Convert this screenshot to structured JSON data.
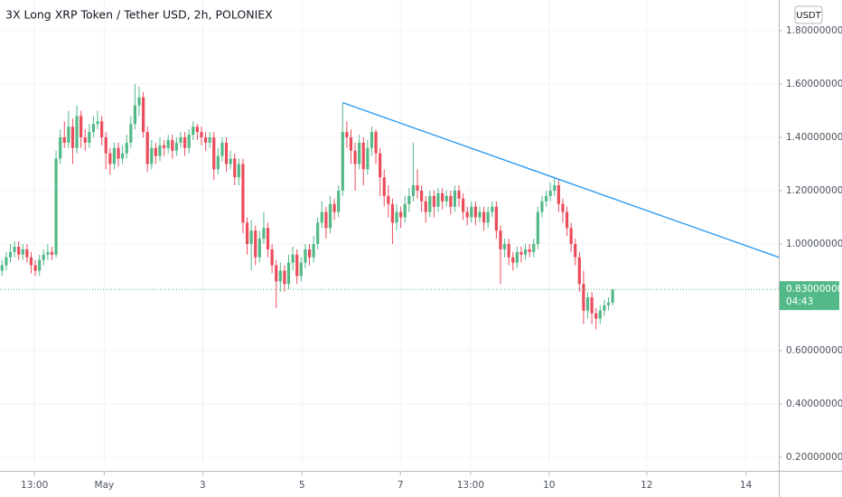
{
  "chart_data": {
    "type": "candlestick",
    "title": "3X Long XRP Token / Tether USD, 2h, POLONIEX",
    "currency_button": "USDT",
    "up_color": "#53b987",
    "down_color": "#eb4d5c",
    "grid": true,
    "xlim": [
      -0.5,
      187
    ],
    "ylim": [
      0.146,
      1.915
    ],
    "yticks": [
      {
        "value": 0.2,
        "label": "0.20000000"
      },
      {
        "value": 0.4,
        "label": "0.40000000"
      },
      {
        "value": 0.6,
        "label": "0.60000000"
      },
      {
        "value": 1.0,
        "label": "1.00000000"
      },
      {
        "value": 1.2,
        "label": "1.20000000"
      },
      {
        "value": 1.4,
        "label": "1.40000000"
      },
      {
        "value": 1.6,
        "label": "1.60000000"
      },
      {
        "value": 1.8,
        "label": "1.80000000"
      }
    ],
    "xticks": [
      {
        "value": 7.8,
        "label": "13:00"
      },
      {
        "value": 24.6,
        "label": "May"
      },
      {
        "value": 48.3,
        "label": "3"
      },
      {
        "value": 72.2,
        "label": "5"
      },
      {
        "value": 95.9,
        "label": "7"
      },
      {
        "value": 112.8,
        "label": "13:00"
      },
      {
        "value": 131.7,
        "label": "10"
      },
      {
        "value": 155.2,
        "label": "12"
      },
      {
        "value": 179.1,
        "label": "14"
      }
    ],
    "last_price": {
      "value": 0.83,
      "label": "0.83000000"
    },
    "countdown": "04:43",
    "trendline": {
      "x": [
        82,
        187
      ],
      "y": [
        1.53,
        0.95
      ],
      "color": "#2196f3"
    },
    "candles": {
      "open": [
        0.9,
        0.92,
        0.95,
        0.97,
        0.99,
        0.96,
        0.98,
        0.95,
        0.92,
        0.9,
        0.94,
        0.96,
        0.97,
        0.96,
        1.32,
        1.4,
        1.38,
        1.44,
        1.36,
        1.48,
        1.4,
        1.38,
        1.42,
        1.45,
        1.46,
        1.4,
        1.34,
        1.3,
        1.36,
        1.32,
        1.34,
        1.38,
        1.45,
        1.52,
        1.55,
        1.42,
        1.3,
        1.36,
        1.33,
        1.37,
        1.36,
        1.39,
        1.35,
        1.38,
        1.4,
        1.36,
        1.41,
        1.44,
        1.42,
        1.4,
        1.38,
        1.4,
        1.28,
        1.33,
        1.38,
        1.3,
        1.32,
        1.25,
        1.3,
        1.08,
        1.0,
        1.05,
        0.95,
        1.02,
        1.06,
        0.98,
        0.92,
        0.86,
        0.9,
        0.85,
        0.93,
        0.96,
        0.88,
        0.93,
        0.98,
        0.95,
        1.0,
        1.08,
        1.12,
        1.06,
        1.15,
        1.12,
        1.2,
        1.42,
        1.4,
        1.35,
        1.3,
        1.38,
        1.28,
        1.36,
        1.42,
        1.34,
        1.25,
        1.18,
        1.15,
        1.08,
        1.12,
        1.1,
        1.15,
        1.18,
        1.22,
        1.2,
        1.16,
        1.12,
        1.18,
        1.14,
        1.19,
        1.16,
        1.18,
        1.14,
        1.2,
        1.17,
        1.12,
        1.1,
        1.14,
        1.1,
        1.12,
        1.08,
        1.12,
        1.14,
        1.05,
        0.98,
        1.0,
        0.95,
        0.93,
        0.97,
        0.96,
        0.98,
        0.97,
        1.0,
        1.12,
        1.16,
        1.18,
        1.2,
        1.22,
        1.15,
        1.12,
        1.06,
        1.0,
        0.95,
        0.85,
        0.75,
        0.8,
        0.74,
        0.72,
        0.75,
        0.77,
        0.78
      ],
      "high": [
        0.94,
        0.97,
        1.0,
        1.01,
        1.01,
        1.0,
        1.0,
        0.97,
        0.94,
        0.96,
        0.98,
        1.0,
        0.99,
        1.35,
        1.43,
        1.46,
        1.5,
        1.47,
        1.52,
        1.5,
        1.43,
        1.45,
        1.48,
        1.5,
        1.48,
        1.42,
        1.36,
        1.38,
        1.38,
        1.37,
        1.41,
        1.48,
        1.6,
        1.59,
        1.57,
        1.44,
        1.39,
        1.38,
        1.4,
        1.39,
        1.41,
        1.41,
        1.4,
        1.42,
        1.42,
        1.43,
        1.46,
        1.45,
        1.44,
        1.42,
        1.42,
        1.42,
        1.36,
        1.4,
        1.4,
        1.35,
        1.34,
        1.32,
        1.32,
        1.1,
        1.09,
        1.07,
        1.05,
        1.12,
        1.08,
        1.0,
        0.94,
        0.93,
        0.92,
        0.96,
        0.99,
        0.98,
        0.95,
        1.0,
        1.0,
        1.03,
        1.1,
        1.16,
        1.14,
        1.18,
        1.17,
        1.22,
        1.53,
        1.46,
        1.43,
        1.38,
        1.41,
        1.4,
        1.39,
        1.44,
        1.43,
        1.36,
        1.28,
        1.22,
        1.17,
        1.15,
        1.14,
        1.18,
        1.21,
        1.38,
        1.28,
        1.22,
        1.18,
        1.2,
        1.2,
        1.21,
        1.21,
        1.2,
        1.2,
        1.22,
        1.22,
        1.19,
        1.14,
        1.16,
        1.16,
        1.14,
        1.14,
        1.14,
        1.16,
        1.16,
        1.07,
        1.02,
        1.02,
        0.97,
        0.99,
        0.99,
        1.0,
        1.0,
        1.02,
        1.14,
        1.18,
        1.2,
        1.23,
        1.25,
        1.24,
        1.17,
        1.14,
        1.08,
        1.02,
        0.97,
        0.9,
        0.82,
        0.82,
        0.76,
        0.77,
        0.79,
        0.8,
        0.83
      ],
      "low": [
        0.88,
        0.9,
        0.93,
        0.95,
        0.94,
        0.94,
        0.93,
        0.89,
        0.88,
        0.88,
        0.92,
        0.94,
        0.94,
        0.95,
        1.3,
        1.36,
        1.36,
        1.3,
        1.34,
        1.36,
        1.35,
        1.36,
        1.4,
        1.43,
        1.37,
        1.28,
        1.26,
        1.28,
        1.29,
        1.3,
        1.32,
        1.36,
        1.43,
        1.48,
        1.4,
        1.27,
        1.28,
        1.3,
        1.31,
        1.33,
        1.34,
        1.32,
        1.33,
        1.36,
        1.33,
        1.34,
        1.39,
        1.39,
        1.37,
        1.35,
        1.36,
        1.24,
        1.26,
        1.31,
        1.27,
        1.28,
        1.22,
        1.22,
        1.04,
        0.96,
        0.9,
        0.92,
        0.93,
        1.0,
        0.95,
        0.89,
        0.76,
        0.82,
        0.82,
        0.83,
        0.9,
        0.85,
        0.86,
        0.91,
        0.92,
        0.93,
        0.98,
        1.06,
        1.02,
        1.04,
        1.09,
        1.1,
        1.18,
        1.36,
        1.3,
        1.2,
        1.28,
        1.22,
        1.26,
        1.33,
        1.3,
        1.18,
        1.14,
        1.1,
        1.0,
        1.05,
        1.06,
        1.08,
        1.12,
        1.16,
        1.17,
        1.12,
        1.08,
        1.1,
        1.1,
        1.12,
        1.13,
        1.14,
        1.11,
        1.12,
        1.14,
        1.09,
        1.07,
        1.08,
        1.07,
        1.08,
        1.05,
        1.06,
        1.1,
        1.02,
        0.85,
        0.95,
        0.92,
        0.9,
        0.91,
        0.93,
        0.94,
        0.95,
        0.95,
        0.98,
        1.1,
        1.14,
        1.16,
        1.18,
        1.12,
        1.08,
        1.03,
        0.97,
        0.92,
        0.82,
        0.7,
        0.72,
        0.7,
        0.68,
        0.7,
        0.73,
        0.75,
        0.77
      ],
      "close": [
        0.92,
        0.95,
        0.97,
        0.99,
        0.96,
        0.98,
        0.95,
        0.92,
        0.9,
        0.94,
        0.96,
        0.97,
        0.96,
        1.32,
        1.4,
        1.38,
        1.44,
        1.36,
        1.48,
        1.4,
        1.38,
        1.42,
        1.45,
        1.46,
        1.4,
        1.34,
        1.3,
        1.36,
        1.32,
        1.34,
        1.38,
        1.45,
        1.52,
        1.55,
        1.42,
        1.3,
        1.36,
        1.33,
        1.37,
        1.36,
        1.39,
        1.35,
        1.38,
        1.4,
        1.36,
        1.41,
        1.44,
        1.42,
        1.4,
        1.38,
        1.4,
        1.28,
        1.33,
        1.38,
        1.3,
        1.32,
        1.25,
        1.3,
        1.08,
        1.0,
        1.05,
        0.95,
        1.02,
        1.06,
        0.98,
        0.92,
        0.86,
        0.9,
        0.85,
        0.93,
        0.96,
        0.88,
        0.93,
        0.98,
        0.95,
        1.0,
        1.08,
        1.12,
        1.06,
        1.15,
        1.12,
        1.2,
        1.42,
        1.4,
        1.35,
        1.3,
        1.38,
        1.28,
        1.36,
        1.42,
        1.34,
        1.25,
        1.18,
        1.15,
        1.08,
        1.12,
        1.1,
        1.15,
        1.18,
        1.22,
        1.2,
        1.16,
        1.12,
        1.18,
        1.14,
        1.19,
        1.16,
        1.18,
        1.14,
        1.2,
        1.17,
        1.12,
        1.1,
        1.14,
        1.1,
        1.12,
        1.08,
        1.12,
        1.14,
        1.05,
        0.98,
        1.0,
        0.95,
        0.93,
        0.97,
        0.96,
        0.98,
        0.97,
        1.0,
        1.12,
        1.16,
        1.18,
        1.2,
        1.22,
        1.15,
        1.12,
        1.06,
        1.0,
        0.95,
        0.85,
        0.75,
        0.8,
        0.74,
        0.72,
        0.75,
        0.77,
        0.78,
        0.83
      ]
    }
  }
}
